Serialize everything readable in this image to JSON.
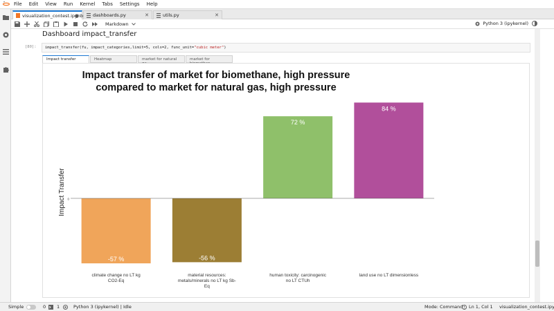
{
  "menu": [
    "File",
    "Edit",
    "View",
    "Run",
    "Kernel",
    "Tabs",
    "Settings",
    "Help"
  ],
  "doc_tabs": [
    {
      "label": "visualization_contest.ipynb",
      "close": "●"
    },
    {
      "label": "dashboards.py",
      "close": "✕"
    },
    {
      "label": "utils.py",
      "close": "✕"
    }
  ],
  "toolbar": {
    "cell_type": "Markdown",
    "kernel_name": "Python 3 (ipykernel)"
  },
  "notebook": {
    "heading": "Dashboard impact_transfer",
    "prompt": "[80]:",
    "code_pre": "impact_transfer(fu, impact_categories,limit=5, cols=2, func_unit=",
    "code_str": "\"cubic meter\"",
    "code_post": ")",
    "output_tabs": [
      "Impact transfer",
      "Heatmap",
      "market for natural ga",
      "market for biomethan"
    ]
  },
  "chart_data": {
    "type": "bar",
    "title": "Impact transfer of market for biomethane, high pressure compared to market for natural gas, high pressure",
    "title_lines": [
      "Impact transfer of market for biomethane, high pressure",
      "compared to market for natural gas, high pressure"
    ],
    "ylabel": "Impact Transfer",
    "zero_tick": "0",
    "categories": [
      [
        "climate change no LT  kg",
        "CO2-Eq"
      ],
      [
        "material resources:",
        "metals/minerals no LT  kg Sb-",
        "Eq"
      ],
      [
        "human toxicity: carcinogenic",
        "no LT  CTUh"
      ],
      [
        "land use no LT  dimensionless"
      ]
    ],
    "values": [
      -57,
      -56,
      72,
      84
    ],
    "value_labels": [
      "-57 %",
      "-56 %",
      "72 %",
      "84 %"
    ],
    "colors": [
      "#f0a55a",
      "#9c7e34",
      "#8fc06a",
      "#b14f9b"
    ],
    "ylim": [
      -57,
      84
    ],
    "grid": false
  },
  "status": {
    "mode_label": "Simple",
    "left_count_a": "0",
    "left_count_b": "1",
    "kernel_state": "Python 3 (ipykernel) | Idle",
    "mode": "Mode: Command",
    "cursor": "Ln 1, Col 1",
    "file": "visualization_contest.ipynb"
  }
}
